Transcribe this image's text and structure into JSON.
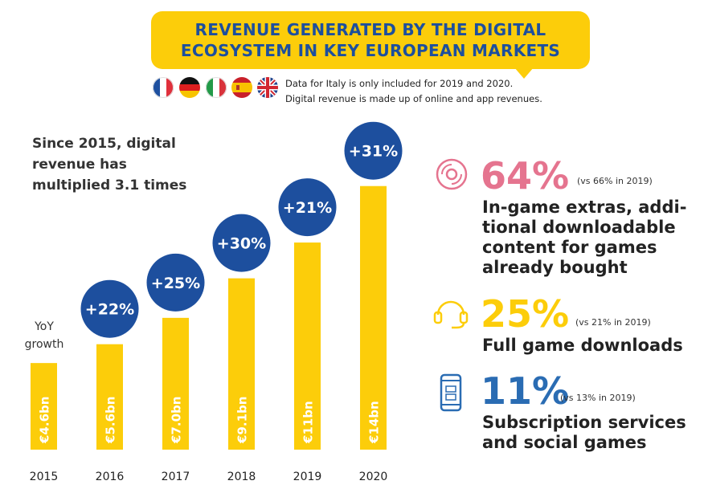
{
  "header": {
    "title_line1": "REVENUE GENERATED BY THE DIGITAL",
    "title_line2": "ECOSYSTEM IN KEY EUROPEAN MARKETS",
    "note1": "Data for Italy is only included for 2019 and 2020.",
    "note2": "Digital revenue is made up of online and app revenues.",
    "flags": [
      "france-flag-icon",
      "germany-flag-icon",
      "italy-flag-icon",
      "spain-flag-icon",
      "uk-flag-icon"
    ]
  },
  "callout": {
    "line1": "Since 2015, digital",
    "line2": "revenue has",
    "line3": "multiplied 3.1 times"
  },
  "yoy_label": {
    "line1": "YoY",
    "line2": "growth"
  },
  "colors": {
    "bar": "#fccd0a",
    "circle": "#1d4f9e",
    "pink": "#e5748f",
    "yellow": "#fccd0a",
    "blue": "#2a6cb3"
  },
  "chart_data": {
    "type": "bar",
    "categories": [
      "2015",
      "2016",
      "2017",
      "2018",
      "2019",
      "2020"
    ],
    "values": [
      4.6,
      5.6,
      7.0,
      9.1,
      11,
      14
    ],
    "value_labels": [
      "€4.6bn",
      "€5.6bn",
      "€7.0bn",
      "€9.1bn",
      "€11bn",
      "€14bn"
    ],
    "growth_labels": [
      "",
      "+22%",
      "+25%",
      "+30%",
      "+21%",
      "+31%"
    ],
    "ylim": [
      0,
      14.5
    ]
  },
  "stats": [
    {
      "icon": "disc-icon",
      "value": "64%",
      "vs": "(vs 66% in 2019)",
      "lines": [
        "In-game extras, addi-",
        "tional downloadable",
        "content for games",
        "already bought"
      ]
    },
    {
      "icon": "headset-icon",
      "value": "25%",
      "vs": "(vs 21% in 2019)",
      "lines": [
        "Full game downloads"
      ]
    },
    {
      "icon": "mobile-phone-icon",
      "value": "11%",
      "vs": "(vs 13% in 2019)",
      "lines": [
        "Subscription services",
        "and social games"
      ]
    }
  ]
}
